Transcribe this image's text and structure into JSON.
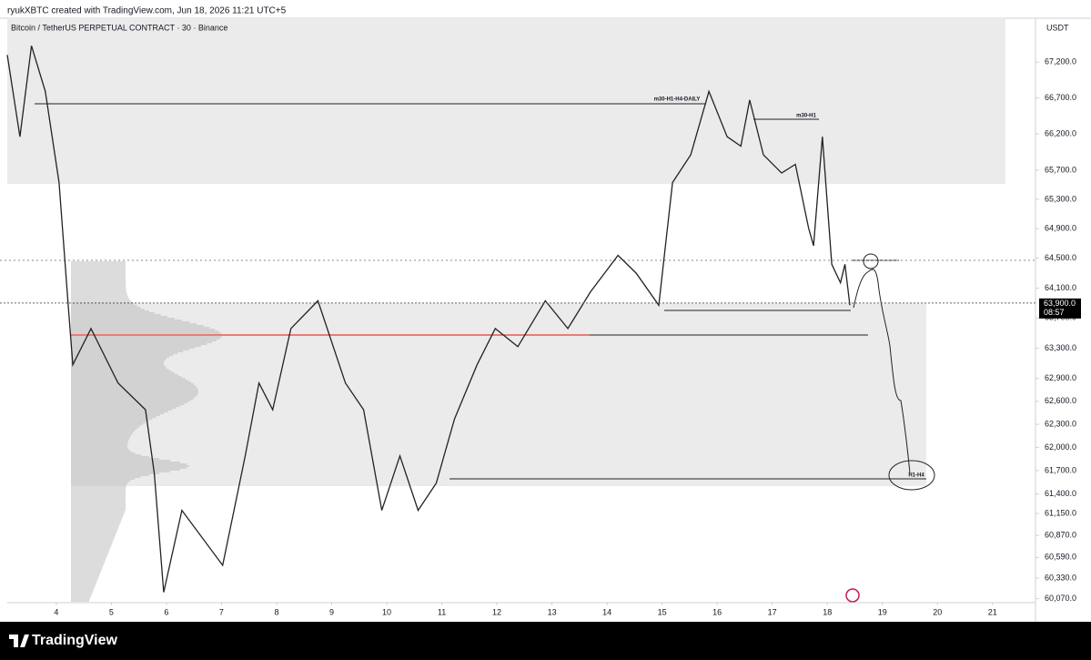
{
  "header": "ryukXBTC created with TradingView.com, Jun 18, 2026 11:21 UTC+5",
  "footer": "TradingView",
  "chart_data": {
    "type": "line",
    "title": "Bitcoin / TetherUS PERPETUAL CONTRACT · 30 · Binance",
    "currency": "USDT",
    "color": "#222222",
    "log": true,
    "grid": false,
    "x": [
      3.11,
      3.34,
      3.55,
      3.8,
      4.05,
      4.21,
      4.3,
      4.63,
      5.12,
      5.62,
      5.78,
      5.95,
      6.28,
      7.02,
      7.43,
      7.68,
      7.93,
      8.26,
      8.75,
      9.25,
      9.58,
      9.91,
      10.24,
      10.57,
      10.9,
      11.23,
      11.64,
      11.97,
      12.38,
      12.88,
      13.29,
      13.7,
      14.2,
      14.53,
      14.94,
      15.19,
      15.52,
      15.85,
      16.18,
      16.43,
      16.59,
      16.84,
      17.17,
      17.42,
      17.66,
      17.75,
      17.91,
      18.08,
      18.24,
      18.32,
      18.41
    ],
    "values": [
      67300,
      66160,
      67430,
      66790,
      65530,
      63930,
      63080,
      63560,
      62840,
      62490,
      61660,
      60150,
      61190,
      60490,
      61890,
      62840,
      62490,
      63560,
      63930,
      62840,
      62490,
      61190,
      61890,
      61190,
      61540,
      62370,
      63080,
      63560,
      63320,
      63930,
      63560,
      64050,
      64540,
      64300,
      63870,
      65530,
      65910,
      66790,
      66160,
      66030,
      66670,
      65910,
      65660,
      65780,
      64910,
      64670,
      66160,
      64420,
      64170,
      64420,
      63870
    ],
    "xlim": [
      3.11,
      21.78
    ],
    "xticks": [
      4,
      5,
      6,
      7,
      8,
      9,
      10,
      11,
      12,
      13,
      14,
      15,
      16,
      17,
      18,
      19,
      20,
      21
    ],
    "ylim": [
      60020,
      67820
    ],
    "yticks": [
      {
        "value": 67200,
        "label": "67,200.0"
      },
      {
        "value": 66700,
        "label": "66,700.0"
      },
      {
        "value": 66200,
        "label": "66,200.0"
      },
      {
        "value": 65700,
        "label": "65,700.0"
      },
      {
        "value": 65300,
        "label": "65,300.0"
      },
      {
        "value": 64900,
        "label": "64,900.0"
      },
      {
        "value": 64500,
        "label": "64,500.0"
      },
      {
        "value": 64100,
        "label": "64,100.0"
      },
      {
        "value": 63700,
        "label": "63,700.0"
      },
      {
        "value": 63300,
        "label": "63,300.0"
      },
      {
        "value": 62900,
        "label": "62,900.0"
      },
      {
        "value": 62600,
        "label": "62,600.0"
      },
      {
        "value": 62300,
        "label": "62,300.0"
      },
      {
        "value": 62000,
        "label": "62,000.0"
      },
      {
        "value": 61700,
        "label": "61,700.0"
      },
      {
        "value": 61400,
        "label": "61,400.0"
      },
      {
        "value": 61150,
        "label": "61,150.0"
      },
      {
        "value": 60870,
        "label": "60,870.0"
      },
      {
        "value": 60590,
        "label": "60,590.0"
      },
      {
        "value": 60330,
        "label": "60,330.0"
      },
      {
        "value": 60070,
        "label": "60,070.0"
      }
    ],
    "last_price": {
      "value": 63900,
      "label": "63,900.0"
    },
    "countdown": "08:57",
    "annotations": [
      "m30-H1-H4-DAILY",
      "m30-H1",
      "H1-H4"
    ]
  }
}
